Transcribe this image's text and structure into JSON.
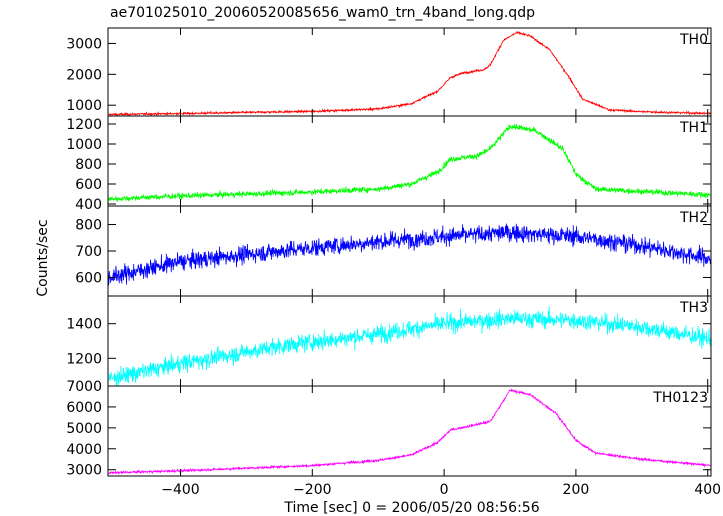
{
  "title": "ae701025010_20060520085656_wam0_trn_4band_long.qdp",
  "chart_data": {
    "type": "line",
    "title": "ae701025010_20060520085656_wam0_trn_4band_long.qdp",
    "xlabel": "Time [sec] 0 = 2006/05/20 08:56:56",
    "ylabel": "Counts/sec",
    "xlim": [
      -510,
      405
    ],
    "xticks": [
      -400,
      -200,
      0,
      200,
      400
    ],
    "xtick_labels": [
      "−400",
      "−200",
      "0",
      "200",
      "400"
    ],
    "grid": false,
    "panels": [
      {
        "name": "TH0",
        "color": "#ff0000",
        "ylim": [
          650,
          3500
        ],
        "yticks": [
          1000,
          2000,
          3000
        ],
        "ytick_labels": [
          "1000",
          "2000",
          "3000"
        ],
        "noise": 28,
        "profile": [
          [
            -510,
            700
          ],
          [
            -400,
            730
          ],
          [
            -200,
            800
          ],
          [
            -100,
            880
          ],
          [
            -50,
            1050
          ],
          [
            -10,
            1450
          ],
          [
            10,
            1900
          ],
          [
            30,
            2050
          ],
          [
            60,
            2150
          ],
          [
            70,
            2300
          ],
          [
            90,
            3100
          ],
          [
            110,
            3350
          ],
          [
            130,
            3250
          ],
          [
            160,
            2800
          ],
          [
            190,
            1900
          ],
          [
            210,
            1200
          ],
          [
            250,
            850
          ],
          [
            300,
            790
          ],
          [
            405,
            730
          ]
        ]
      },
      {
        "name": "TH1",
        "color": "#00ff00",
        "ylim": [
          380,
          1280
        ],
        "yticks": [
          400,
          600,
          800,
          1000,
          1200
        ],
        "ytick_labels": [
          "400",
          "600",
          "800",
          "1000",
          "1200"
        ],
        "noise": 24,
        "profile": [
          [
            -510,
            450
          ],
          [
            -400,
            480
          ],
          [
            -200,
            520
          ],
          [
            -100,
            550
          ],
          [
            -50,
            600
          ],
          [
            -10,
            720
          ],
          [
            10,
            850
          ],
          [
            50,
            880
          ],
          [
            70,
            950
          ],
          [
            100,
            1180
          ],
          [
            140,
            1130
          ],
          [
            180,
            950
          ],
          [
            200,
            700
          ],
          [
            230,
            550
          ],
          [
            405,
            490
          ]
        ]
      },
      {
        "name": "TH2",
        "color": "#0000ff",
        "ylim": [
          530,
          870
        ],
        "yticks": [
          600,
          700,
          800
        ],
        "ytick_labels": [
          "600",
          "700",
          "800"
        ],
        "noise": 28,
        "profile": [
          [
            -510,
            600
          ],
          [
            -400,
            660
          ],
          [
            -250,
            700
          ],
          [
            -100,
            735
          ],
          [
            0,
            755
          ],
          [
            100,
            770
          ],
          [
            200,
            755
          ],
          [
            300,
            720
          ],
          [
            405,
            670
          ]
        ]
      },
      {
        "name": "TH3",
        "color": "#00ffff",
        "ylim": [
          1040,
          1560
        ],
        "yticks": [
          1200,
          1400
        ],
        "ytick_labels": [
          "1200",
          "1400"
        ],
        "noise": 42,
        "profile": [
          [
            -510,
            1080
          ],
          [
            -400,
            1170
          ],
          [
            -250,
            1270
          ],
          [
            -100,
            1340
          ],
          [
            0,
            1400
          ],
          [
            100,
            1430
          ],
          [
            200,
            1420
          ],
          [
            300,
            1380
          ],
          [
            405,
            1310
          ]
        ]
      },
      {
        "name": "TH0123",
        "color": "#ff00ff",
        "ylim": [
          2700,
          7000
        ],
        "yticks": [
          3000,
          4000,
          5000,
          6000,
          7000
        ],
        "ytick_labels": [
          "3000",
          "4000",
          "5000",
          "6000",
          "7000"
        ],
        "noise": 45,
        "profile": [
          [
            -510,
            2850
          ],
          [
            -400,
            2950
          ],
          [
            -200,
            3200
          ],
          [
            -100,
            3450
          ],
          [
            -50,
            3700
          ],
          [
            -10,
            4300
          ],
          [
            10,
            4900
          ],
          [
            40,
            5100
          ],
          [
            70,
            5300
          ],
          [
            100,
            6800
          ],
          [
            130,
            6600
          ],
          [
            170,
            5700
          ],
          [
            200,
            4400
          ],
          [
            230,
            3800
          ],
          [
            300,
            3500
          ],
          [
            405,
            3200
          ]
        ]
      }
    ]
  }
}
